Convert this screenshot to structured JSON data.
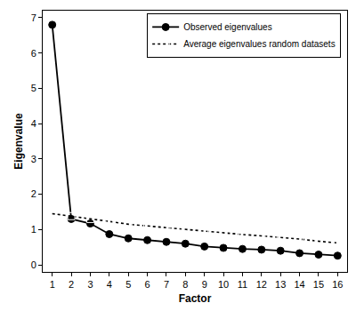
{
  "chart_data": {
    "type": "line",
    "x_label": "Factor",
    "y_label": "Eigenvalue",
    "x": [
      1,
      2,
      3,
      4,
      5,
      6,
      7,
      8,
      9,
      10,
      11,
      12,
      13,
      14,
      15,
      16
    ],
    "series": [
      {
        "name": "Observed eigenvalues",
        "color": "#000000",
        "marker": "circle",
        "line_style": "solid",
        "values": [
          6.8,
          1.3,
          1.17,
          0.87,
          0.75,
          0.7,
          0.65,
          0.6,
          0.52,
          0.48,
          0.45,
          0.43,
          0.4,
          0.33,
          0.29,
          0.26
        ]
      },
      {
        "name": "Average eigenvalues random datasets",
        "color": "#000000",
        "marker": "square-open",
        "line_style": "dot",
        "values": [
          1.45,
          1.38,
          1.3,
          1.23,
          1.15,
          1.1,
          1.05,
          1.0,
          0.95,
          0.9,
          0.86,
          0.82,
          0.78,
          0.73,
          0.67,
          0.62
        ]
      }
    ],
    "xlim": [
      0.5,
      16.5
    ],
    "xticks": [
      1,
      2,
      3,
      4,
      5,
      6,
      7,
      8,
      9,
      10,
      11,
      12,
      13,
      14,
      15,
      16
    ],
    "ylim": [
      -0.2,
      7.2
    ],
    "yticks": [
      0,
      1,
      2,
      3,
      4,
      5,
      6,
      7
    ],
    "grid": false,
    "legend": "top-right"
  }
}
